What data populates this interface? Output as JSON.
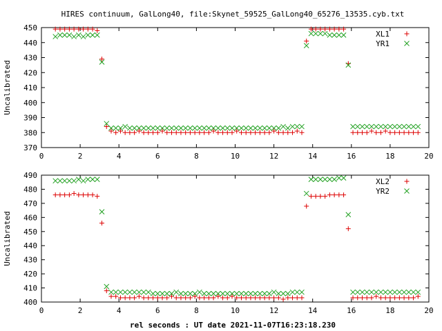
{
  "title": "HIRES continuum, GalLong40, file:Skynet_59525_GalLong40_65276_13535.cyb.txt",
  "xlabel": "rel seconds : UT date 2021-11-07T16:23:18.230",
  "colors": {
    "plus": "#dd0000",
    "cross": "#20a020",
    "axis": "#000000"
  },
  "chart_data": [
    {
      "type": "scatter",
      "ylabel": "Uncalibrated",
      "xlim": [
        0,
        20
      ],
      "ylim": [
        370,
        450
      ],
      "xticks": [
        0,
        2,
        4,
        6,
        8,
        10,
        12,
        14,
        16,
        18,
        20
      ],
      "yticks": [
        370,
        380,
        390,
        400,
        410,
        420,
        430,
        440,
        450
      ],
      "grid": false,
      "legend_position": "top-right",
      "series": [
        {
          "name": "XL1",
          "marker": "plus",
          "x": [
            0.72,
            0.96,
            1.2,
            1.44,
            1.68,
            1.92,
            2.16,
            2.4,
            2.64,
            2.88,
            3.12,
            3.36,
            3.6,
            3.84,
            4.08,
            4.32,
            4.56,
            4.8,
            5.04,
            5.28,
            5.52,
            5.76,
            6.0,
            6.24,
            6.48,
            6.72,
            6.96,
            7.2,
            7.44,
            7.68,
            7.92,
            8.16,
            8.4,
            8.64,
            8.88,
            9.12,
            9.36,
            9.6,
            9.84,
            10.08,
            10.32,
            10.56,
            10.8,
            11.04,
            11.28,
            11.52,
            11.76,
            12.0,
            12.24,
            12.48,
            12.72,
            12.96,
            13.2,
            13.44,
            13.68,
            13.92,
            14.16,
            14.4,
            14.64,
            14.88,
            15.12,
            15.36,
            15.6,
            15.84,
            16.08,
            16.32,
            16.56,
            16.8,
            17.04,
            17.28,
            17.52,
            17.76,
            18.0,
            18.24,
            18.48,
            18.72,
            18.96,
            19.2,
            19.44
          ],
          "y": [
            449,
            449,
            449,
            449,
            449,
            449,
            449,
            449,
            449,
            448,
            429,
            384,
            381,
            380,
            381,
            380,
            380,
            380,
            381,
            380,
            380,
            380,
            380,
            381,
            380,
            380,
            380,
            380,
            380,
            380,
            380,
            380,
            380,
            380,
            381,
            380,
            380,
            380,
            380,
            381,
            380,
            380,
            380,
            380,
            380,
            380,
            380,
            381,
            380,
            380,
            380,
            380,
            381,
            380,
            441,
            449,
            449,
            449,
            449,
            449,
            449,
            449,
            449,
            426,
            380,
            380,
            380,
            380,
            381,
            380,
            380,
            381,
            380,
            380,
            380,
            380,
            380,
            380,
            380
          ]
        },
        {
          "name": "YR1",
          "marker": "cross",
          "x": [
            0.72,
            0.96,
            1.2,
            1.44,
            1.68,
            1.92,
            2.16,
            2.4,
            2.64,
            2.88,
            3.12,
            3.36,
            3.6,
            3.84,
            4.08,
            4.32,
            4.56,
            4.8,
            5.04,
            5.28,
            5.52,
            5.76,
            6.0,
            6.24,
            6.48,
            6.72,
            6.96,
            7.2,
            7.44,
            7.68,
            7.92,
            8.16,
            8.4,
            8.64,
            8.88,
            9.12,
            9.36,
            9.6,
            9.84,
            10.08,
            10.32,
            10.56,
            10.8,
            11.04,
            11.28,
            11.52,
            11.76,
            12.0,
            12.24,
            12.48,
            12.72,
            12.96,
            13.2,
            13.44,
            13.68,
            13.92,
            14.16,
            14.4,
            14.64,
            14.88,
            15.12,
            15.36,
            15.6,
            15.84,
            16.08,
            16.32,
            16.56,
            16.8,
            17.04,
            17.28,
            17.52,
            17.76,
            18.0,
            18.24,
            18.48,
            18.72,
            18.96,
            19.2,
            19.44
          ],
          "y": [
            444,
            445,
            445,
            445,
            444,
            445,
            444,
            445,
            445,
            445,
            427,
            386,
            383,
            383,
            383,
            384,
            383,
            383,
            383,
            383,
            383,
            383,
            383,
            383,
            383,
            383,
            383,
            383,
            383,
            383,
            383,
            383,
            383,
            383,
            383,
            383,
            383,
            383,
            383,
            383,
            383,
            383,
            383,
            383,
            383,
            383,
            383,
            383,
            383,
            384,
            383,
            384,
            384,
            384,
            438,
            446,
            446,
            446,
            446,
            445,
            445,
            445,
            445,
            425,
            384,
            384,
            384,
            384,
            384,
            384,
            384,
            384,
            384,
            384,
            384,
            384,
            384,
            384,
            384
          ]
        }
      ]
    },
    {
      "type": "scatter",
      "ylabel": "Uncalibrated",
      "xlim": [
        0,
        20
      ],
      "ylim": [
        400,
        490
      ],
      "xticks": [
        0,
        2,
        4,
        6,
        8,
        10,
        12,
        14,
        16,
        18,
        20
      ],
      "yticks": [
        400,
        410,
        420,
        430,
        440,
        450,
        460,
        470,
        480,
        490
      ],
      "grid": false,
      "legend_position": "top-right",
      "series": [
        {
          "name": "XL2",
          "marker": "plus",
          "x": [
            0.72,
            0.96,
            1.2,
            1.44,
            1.68,
            1.92,
            2.16,
            2.4,
            2.64,
            2.88,
            3.12,
            3.36,
            3.6,
            3.84,
            4.08,
            4.32,
            4.56,
            4.8,
            5.04,
            5.28,
            5.52,
            5.76,
            6.0,
            6.24,
            6.48,
            6.72,
            6.96,
            7.2,
            7.44,
            7.68,
            7.92,
            8.16,
            8.4,
            8.64,
            8.88,
            9.12,
            9.36,
            9.6,
            9.84,
            10.08,
            10.32,
            10.56,
            10.8,
            11.04,
            11.28,
            11.52,
            11.76,
            12.0,
            12.24,
            12.48,
            12.72,
            12.96,
            13.2,
            13.44,
            13.68,
            13.92,
            14.16,
            14.4,
            14.64,
            14.88,
            15.12,
            15.36,
            15.6,
            15.84,
            16.08,
            16.32,
            16.56,
            16.8,
            17.04,
            17.28,
            17.52,
            17.76,
            18.0,
            18.24,
            18.48,
            18.72,
            18.96,
            19.2,
            19.44
          ],
          "y": [
            476,
            476,
            476,
            476,
            477,
            476,
            476,
            476,
            476,
            475,
            456,
            408,
            404,
            404,
            403,
            403,
            403,
            403,
            404,
            403,
            403,
            403,
            403,
            403,
            403,
            404,
            403,
            403,
            403,
            403,
            404,
            403,
            403,
            403,
            403,
            404,
            403,
            403,
            404,
            403,
            403,
            403,
            403,
            403,
            403,
            403,
            403,
            403,
            403,
            402,
            403,
            403,
            403,
            403,
            468,
            475,
            475,
            475,
            475,
            476,
            476,
            476,
            476,
            452,
            403,
            403,
            403,
            403,
            403,
            404,
            403,
            403,
            403,
            403,
            403,
            403,
            403,
            403,
            404
          ]
        },
        {
          "name": "YR2",
          "marker": "cross",
          "x": [
            0.72,
            0.96,
            1.2,
            1.44,
            1.68,
            1.92,
            2.16,
            2.4,
            2.64,
            2.88,
            3.12,
            3.36,
            3.6,
            3.84,
            4.08,
            4.32,
            4.56,
            4.8,
            5.04,
            5.28,
            5.52,
            5.76,
            6.0,
            6.24,
            6.48,
            6.72,
            6.96,
            7.2,
            7.44,
            7.68,
            7.92,
            8.16,
            8.4,
            8.64,
            8.88,
            9.12,
            9.36,
            9.6,
            9.84,
            10.08,
            10.32,
            10.56,
            10.8,
            11.04,
            11.28,
            11.52,
            11.76,
            12.0,
            12.24,
            12.48,
            12.72,
            12.96,
            13.2,
            13.44,
            13.68,
            13.92,
            14.16,
            14.4,
            14.64,
            14.88,
            15.12,
            15.36,
            15.6,
            15.84,
            16.08,
            16.32,
            16.56,
            16.8,
            17.04,
            17.28,
            17.52,
            17.76,
            18.0,
            18.24,
            18.48,
            18.72,
            18.96,
            19.2,
            19.44
          ],
          "y": [
            486,
            486,
            486,
            486,
            486,
            487,
            486,
            487,
            487,
            487,
            464,
            411,
            407,
            407,
            407,
            407,
            407,
            407,
            407,
            407,
            407,
            406,
            406,
            406,
            406,
            406,
            407,
            406,
            406,
            406,
            406,
            407,
            406,
            406,
            406,
            406,
            406,
            406,
            406,
            406,
            406,
            406,
            406,
            406,
            406,
            406,
            406,
            407,
            406,
            406,
            406,
            407,
            407,
            407,
            477,
            487,
            487,
            487,
            487,
            487,
            487,
            488,
            488,
            462,
            407,
            407,
            407,
            407,
            407,
            407,
            407,
            407,
            407,
            407,
            407,
            407,
            407,
            407,
            407
          ]
        }
      ]
    }
  ]
}
